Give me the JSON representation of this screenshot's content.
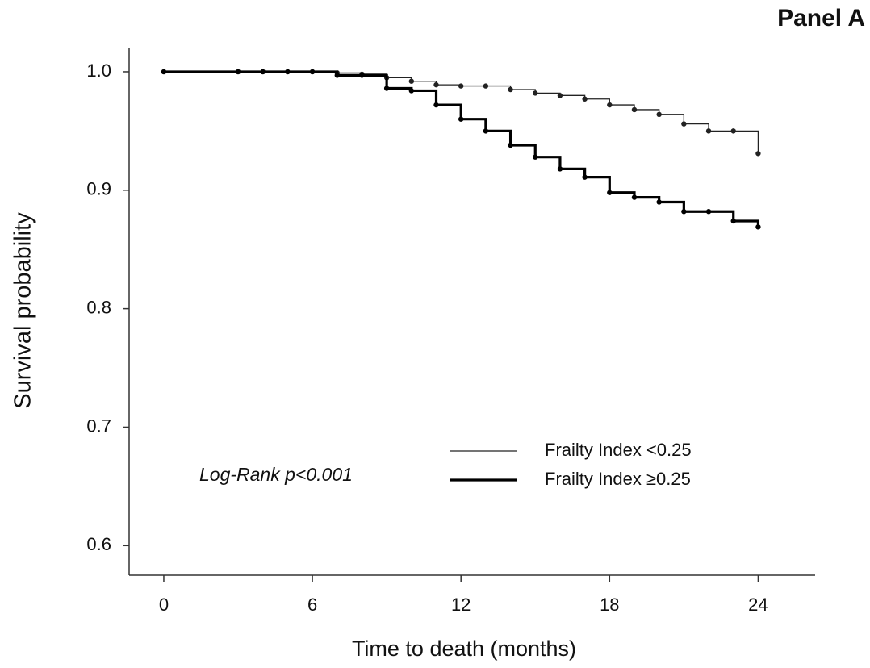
{
  "chart_data": {
    "type": "step",
    "panel_label": "Panel A",
    "x_label": "Time to death (months)",
    "y_label": "Survival probability",
    "annotation": "Log-Rank p<0.001",
    "x": [
      0,
      3,
      4,
      5,
      6,
      7,
      8,
      9,
      10,
      11,
      12,
      13,
      14,
      15,
      16,
      17,
      18,
      19,
      20,
      21,
      22,
      23,
      24
    ],
    "series": [
      {
        "name": "Frailty Index <0.25",
        "color": "#222222",
        "width": 1.3,
        "values": [
          1,
          1,
          1,
          1,
          1,
          0.999,
          0.998,
          0.995,
          0.992,
          0.989,
          0.988,
          0.988,
          0.985,
          0.982,
          0.98,
          0.977,
          0.972,
          0.968,
          0.964,
          0.956,
          0.95,
          0.95,
          0.931
        ]
      },
      {
        "name": "Frailty Index ≥0.25",
        "color": "#000000",
        "width": 3.2,
        "values": [
          1,
          1,
          1,
          1,
          1,
          0.997,
          0.997,
          0.986,
          0.984,
          0.972,
          0.96,
          0.95,
          0.938,
          0.928,
          0.918,
          0.911,
          0.898,
          0.894,
          0.89,
          0.882,
          0.882,
          0.874,
          0.869
        ]
      }
    ],
    "xlim": [
      -1.4,
      26.3
    ],
    "ylim": [
      0.575,
      1.02
    ],
    "xticks": [
      0,
      6,
      12,
      18,
      24
    ],
    "yticks": [
      0.6,
      0.7,
      0.8,
      0.9,
      {
        "value": 1,
        "label": "1.0"
      }
    ]
  }
}
